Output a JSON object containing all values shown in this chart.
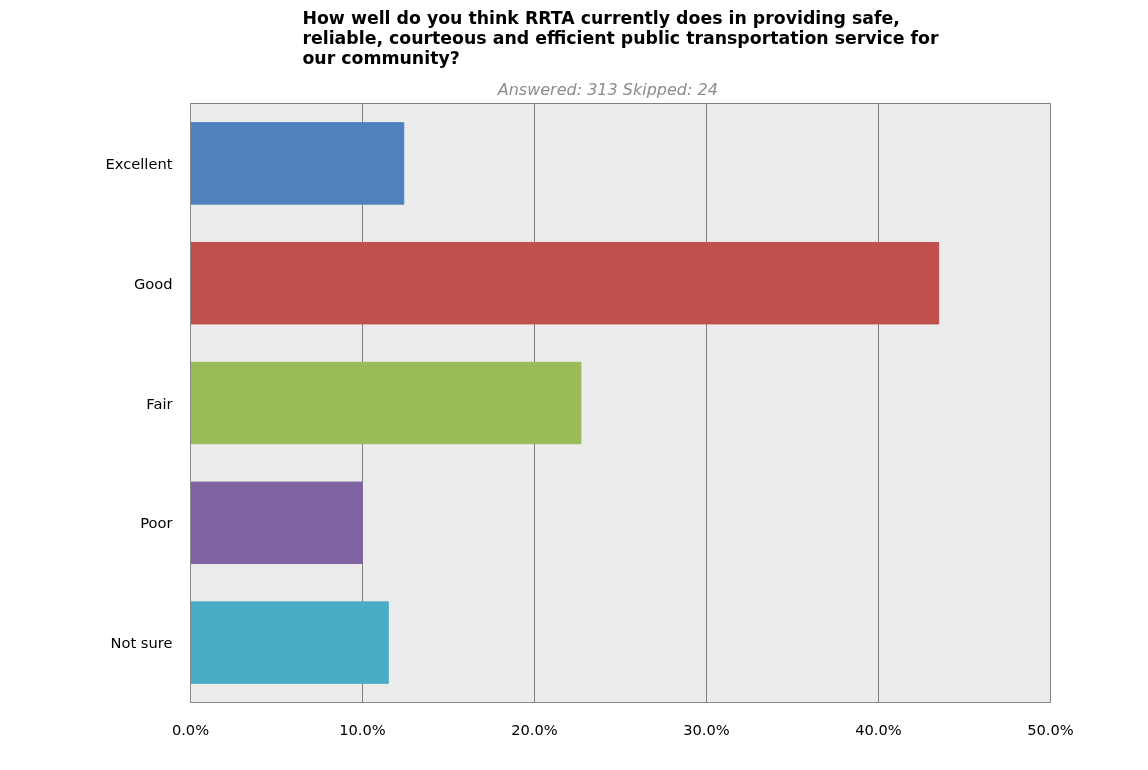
{
  "chart_data": {
    "type": "bar",
    "orientation": "horizontal",
    "title": "How well do you think RRTA currently does in providing safe, reliable, courteous and efficient public transportation service for our community?",
    "subtitle": "Answered:  313    Skipped:  24",
    "categories": [
      "Excellent",
      "Good",
      "Fair",
      "Poor",
      "Not sure"
    ],
    "values": [
      12.4,
      43.5,
      22.7,
      10.0,
      11.5
    ],
    "colors": [
      "#4f81bd",
      "#c0504d",
      "#9bbb59",
      "#8064a2",
      "#4bacc6"
    ],
    "xlim": [
      0,
      50
    ],
    "xticks": [
      {
        "value": 0,
        "label": "0.0%"
      },
      {
        "value": 10,
        "label": "10.0%"
      },
      {
        "value": 20,
        "label": "20.0%"
      },
      {
        "value": 30,
        "label": "30.0%"
      },
      {
        "value": 40,
        "label": "40.0%"
      },
      {
        "value": 50,
        "label": "50.0%"
      }
    ],
    "grid": "x"
  }
}
